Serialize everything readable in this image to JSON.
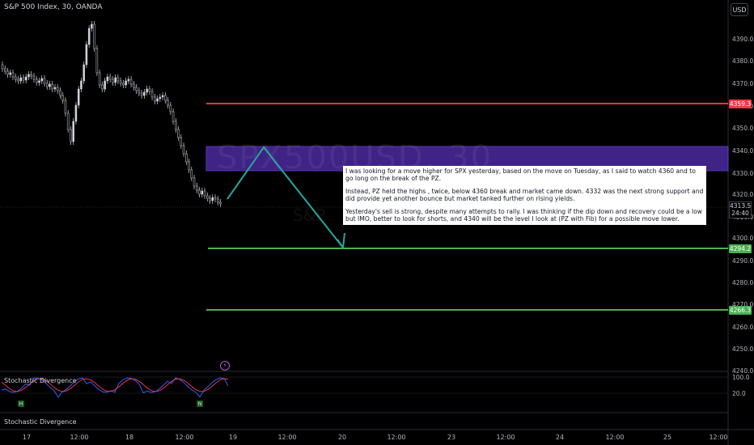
{
  "header": {
    "symbol_title": "S&P 500 Index, 30, OANDA",
    "currency_button": "USD"
  },
  "watermark": {
    "main": "SPX500USD, 30",
    "sub": "S&P"
  },
  "price_axis": {
    "ticks": [
      "4390.0",
      "4380.0",
      "4370.0",
      "4360.0",
      "4350.0",
      "4340.0",
      "4330.0",
      "4320.0",
      "4310.0",
      "4300.0",
      "4290.0",
      "4280.0",
      "4270.0",
      "4260.0",
      "4250.0",
      "4240.0"
    ],
    "badges": [
      {
        "label": "4359.3",
        "color": "#f23645"
      },
      {
        "label": "4294.2",
        "color": "#4caf50"
      },
      {
        "label": "4266.3",
        "color": "#4caf50"
      }
    ],
    "last_price": "4313.5",
    "countdown": "24:40"
  },
  "time_axis": {
    "ticks": [
      "17",
      "12:00",
      "18",
      "12:00",
      "19",
      "12:00",
      "20",
      "12:00",
      "23",
      "12:00",
      "24",
      "12:00",
      "25",
      "12:00"
    ]
  },
  "levels": {
    "resistance": "4359.3",
    "support_1": "4294.2",
    "support_2": "4266.3",
    "zone_top": "4340",
    "zone_bottom": "4328"
  },
  "note": {
    "p1": "I was looking for a move higher for SPX yesterday, based on the move on Tuesday, as I said to watch 4360 and to go long on the break of the PZ.",
    "p2": "Instead, PZ held the highs , twice, below 4360 break and market came down. 4332 was the next strong support and did provide yet another bounce but market tanked further on rising yields.",
    "p3": "Yesterday's sell is strong, despite many attempts to rally. I was thinking if the dip down and recovery could be a low but IMO, better to look for shorts, and 4340 will be the level I look at (PZ with Fib) for a possible move lower."
  },
  "indicator": {
    "name": "Stochastic Divergence",
    "name_bottom": "Stochastic Divergence",
    "levels": [
      "100.0",
      "20.0"
    ],
    "markers": [
      "H",
      "N"
    ],
    "flash_icon": "lightning-icon"
  },
  "colors": {
    "background": "#000000",
    "resistance": "#f23645",
    "support": "#4caf50",
    "zone": "#5b2bb0",
    "projection": "#26a69a",
    "candle": "#d1d4dc"
  }
}
